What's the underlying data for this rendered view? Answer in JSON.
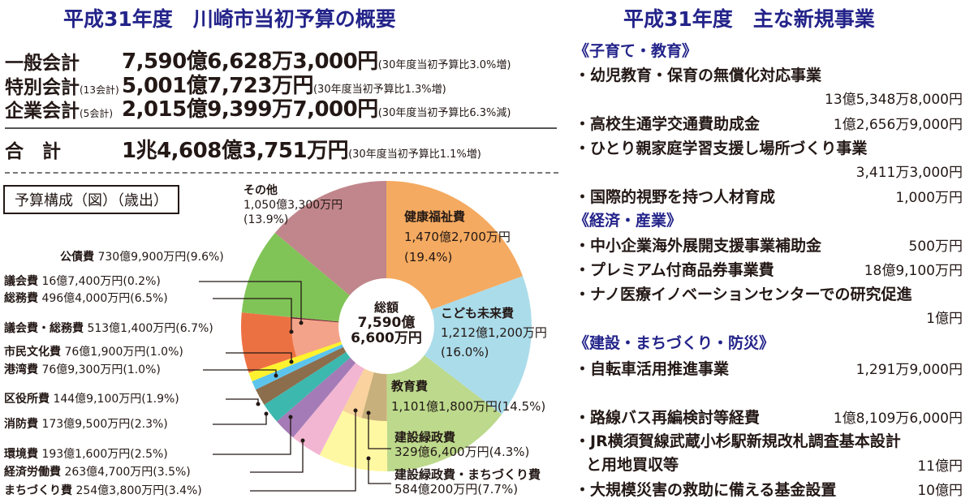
{
  "left": {
    "title": "平成31年度　川崎市当初予算の概要",
    "rows": [
      {
        "label": "一般会計",
        "sub": "",
        "amount": "7,590億6,628万3,000円",
        "note": "(30年度当初予算比3.0%増)"
      },
      {
        "label": "特別会計",
        "sub": "(13会計)",
        "amount": "5,001億7,723万円",
        "note": "(30年度当初予算比1.3%増)"
      },
      {
        "label": "企業会計",
        "sub": "(5会計)",
        "amount": "2,015億9,399万7,000円",
        "note": "(30年度当初予算比6.3%減)"
      }
    ],
    "total": {
      "label": "合　計",
      "amount": "1兆4,608億3,751万円",
      "note": "(30年度当初予算比1.1%増)"
    },
    "chart_box_label": "予算構成（図）（歳出）"
  },
  "chart_data": {
    "type": "pie",
    "title": "予算構成（図）（歳出）",
    "center_label": [
      "総額",
      "7,590億",
      "6,600万円"
    ],
    "unit": "%",
    "slices": [
      {
        "name": "健康福祉費",
        "amount": "1,470億2,700万円",
        "pct_label": "(19.4%)",
        "value": 19.4,
        "color": "#f4aa60"
      },
      {
        "name": "こども未来費",
        "amount": "1,212億1,200万円",
        "pct_label": "(16.0%)",
        "value": 16.0,
        "color": "#abdcea"
      },
      {
        "name": "教育費",
        "amount": "1,101億1,800万円",
        "pct_label": "(14.5%)",
        "value": 14.5,
        "color": "#bcd98c"
      },
      {
        "name": "建設緑政費・まちづくり費",
        "amount": "584億200万円",
        "pct_label": "(7.7%)",
        "value": 7.7,
        "color": "#fff8a2",
        "inner": [
          {
            "name": "建設緑政費",
            "amount": "329億6,400万円",
            "pct_label": "(4.3%)",
            "value": 4.3,
            "color": "#c8b07c"
          },
          {
            "name": "まちづくり費",
            "amount": "254億3,800万円",
            "pct_label": "(3.4%)",
            "value": 3.4,
            "color": "#f9d29e"
          }
        ]
      },
      {
        "name": "経済労働費",
        "amount": "263億4,700万円",
        "pct_label": "(3.5%)",
        "value": 3.5,
        "color": "#f2b6d2"
      },
      {
        "name": "環境費",
        "amount": "193億1,600万円",
        "pct_label": "(2.5%)",
        "value": 2.5,
        "color": "#a47bb6"
      },
      {
        "name": "消防費",
        "amount": "173億9,500万円",
        "pct_label": "(2.3%)",
        "value": 2.3,
        "color": "#3cb8ae"
      },
      {
        "name": "区役所費",
        "amount": "144億9,100万円",
        "pct_label": "(1.9%)",
        "value": 1.9,
        "color": "#8c6d4c"
      },
      {
        "name": "港湾費",
        "amount": "76億9,300万円",
        "pct_label": "(1.0%)",
        "value": 1.0,
        "color": "#5cc4ec"
      },
      {
        "name": "市民文化費",
        "amount": "76億1,900万円",
        "pct_label": "(1.0%)",
        "value": 1.0,
        "color": "#fff22e"
      },
      {
        "name": "議会費・総務費",
        "amount": "513億1,400万円",
        "pct_label": "(6.7%)",
        "value": 6.7,
        "color": "#ec7142",
        "inner": [
          {
            "name": "総務費",
            "amount": "496億4,000万円",
            "pct_label": "(6.5%)",
            "value": 6.5,
            "color": "#f3a38a"
          },
          {
            "name": "議会費",
            "amount": "16億7,400万円",
            "pct_label": "(0.2%)",
            "value": 0.2,
            "color": "#6b1f3a"
          }
        ]
      },
      {
        "name": "公債費",
        "amount": "730億9,900万円",
        "pct_label": "(9.6%)",
        "value": 9.6,
        "color": "#80c457"
      },
      {
        "name": "その他",
        "amount": "1,050億3,300万円",
        "pct_label": "(13.9%)",
        "value": 13.9,
        "color": "#c0868b"
      }
    ]
  },
  "right": {
    "title": "平成31年度　主な新規事業",
    "sections": [
      {
        "heading": "《子育て・教育》",
        "items": [
          {
            "name": "・幼児教育・保育の無償化対応事業",
            "amount": "13億5,348万8,000円"
          },
          {
            "name": "・高校生通学交通費助成金",
            "amount": "1億2,656万9,000円"
          },
          {
            "name": "・ひとり親家庭学習支援し場所づくり事業",
            "amount": "3,411万3,000円"
          },
          {
            "name": "・国際的視野を持つ人材育成",
            "amount": "1,000万円"
          }
        ]
      },
      {
        "heading": "《経済・産業》",
        "items": [
          {
            "name": "・中小企業海外展開支援事業補助金",
            "amount": "500万円"
          },
          {
            "name": "・プレミアム付商品券事業費",
            "amount": "18億9,100万円"
          },
          {
            "name": "・ナノ医療イノベーションセンターでの研究促進",
            "amount": "1億円"
          }
        ]
      },
      {
        "heading": "《建設・まちづくり・防災》",
        "items": [
          {
            "name": "・自転車活用推進事業",
            "amount": "1,291万9,000円"
          },
          {
            "name": "・路線バス再編検討等経費",
            "amount": "1億8,109万6,000円"
          },
          {
            "name": "・JR横須賀線武蔵小杉駅新規改札調査基本設計",
            "name2": "と用地買収等",
            "amount": "11億円"
          },
          {
            "name": "・大規模災害の救助に備える基金設置",
            "amount": "10億円"
          }
        ]
      }
    ]
  }
}
